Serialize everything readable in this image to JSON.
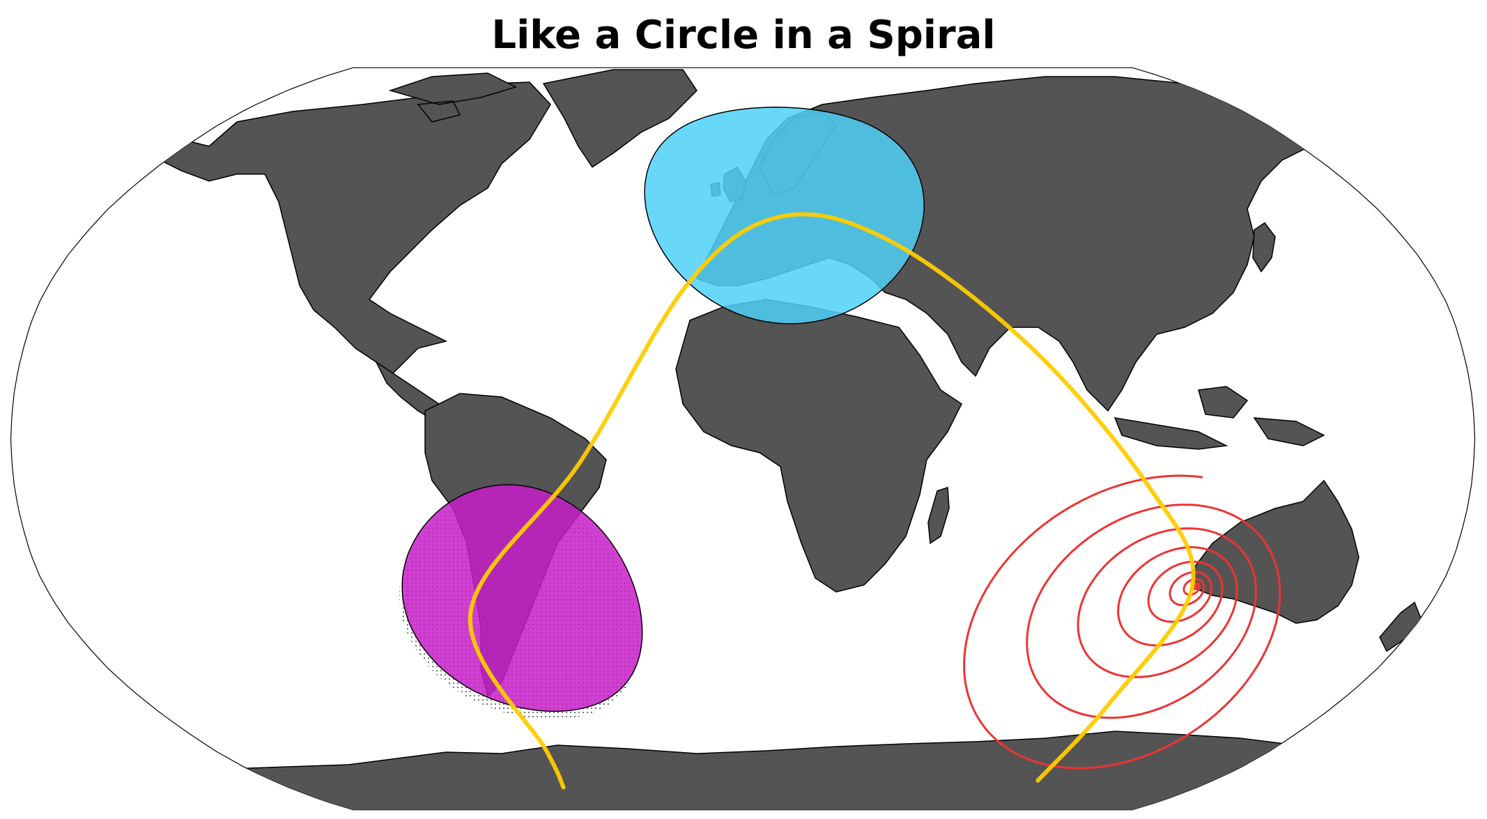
{
  "title": "Like a Circle in a Spiral",
  "projection": "Robinson",
  "colors": {
    "ocean": "#ffffff",
    "land": "#545454",
    "coast": "#000000",
    "europe_circle": "#4fd0f7",
    "south_america_circle": "#c81ec8",
    "track": "#ffcc00",
    "spiral": "#ee3333"
  },
  "overlays": {
    "europe_circle": {
      "center_lon": 12,
      "center_lat": 50,
      "radius_deg": 25,
      "hatched": false
    },
    "south_america_circle": {
      "center_lon": -58,
      "center_lat": -35,
      "radius_deg": 25,
      "hatched": true
    },
    "spiral": {
      "center_lon": 117,
      "center_lat": -32,
      "turns": 9
    },
    "track": {
      "points_lonlat": [
        [
          -71,
          -80
        ],
        [
          -67,
          -70
        ],
        [
          -72,
          -38
        ],
        [
          -40,
          -5
        ],
        [
          -14,
          34
        ],
        [
          11,
          48.5
        ],
        [
          40,
          43
        ],
        [
          72,
          20
        ],
        [
          100,
          -10
        ],
        [
          116,
          -32
        ],
        [
          111,
          -58
        ],
        [
          113,
          -78
        ]
      ]
    }
  }
}
